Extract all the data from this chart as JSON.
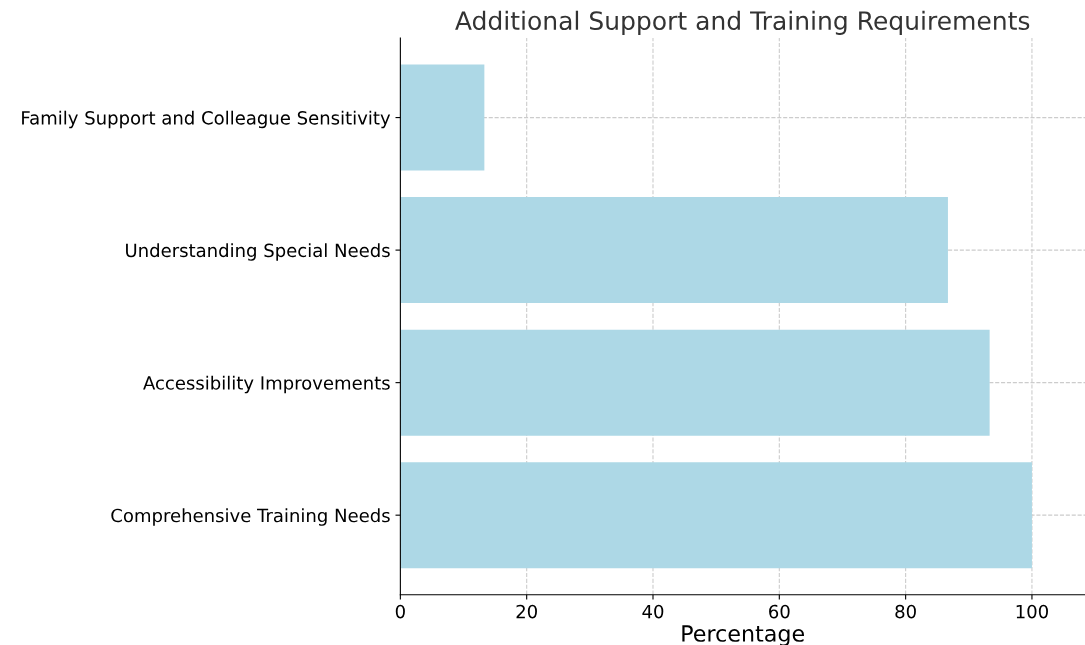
{
  "chart_data": {
    "type": "bar",
    "orientation": "horizontal",
    "title": "Additional Support and Training Requirements",
    "xlabel": "Percentage",
    "categories": [
      "Family Support and Colleague Sensitivity",
      "Understanding Special Needs",
      "Accessibility Improvements",
      "Comprehensive Training Needs"
    ],
    "values": [
      13.3,
      86.7,
      93.3,
      100
    ],
    "color": "#add8e6",
    "xlim": [
      0,
      108.4
    ],
    "xticks": [
      0,
      20,
      40,
      60,
      80,
      100
    ],
    "grid": true
  }
}
